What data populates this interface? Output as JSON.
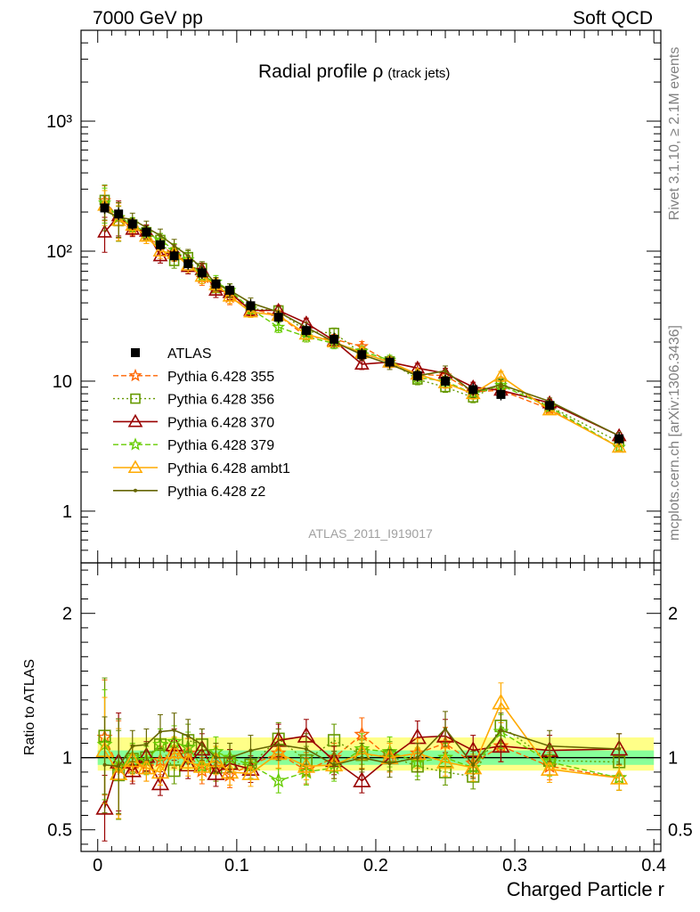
{
  "header": {
    "left": "7000 GeV pp",
    "right": "Soft QCD"
  },
  "side": {
    "upper": "Rivet 3.1.10, ≥ 2.1M events",
    "lower": "mcplots.cern.ch [arXiv:1306.3436]"
  },
  "chart_data": [
    {
      "type": "line",
      "panel": "main",
      "title": "Radial profile ρ",
      "subtitle": "(track jets)",
      "analysis_label": "ATLAS_2011_I919017",
      "xlabel": "",
      "ylabel": "",
      "yscale": "log",
      "xlim": [
        -0.012,
        0.405
      ],
      "ylim": [
        0.4,
        5000
      ],
      "ytick_labels": [
        "1",
        "10",
        "10²",
        "10³"
      ],
      "legend_position": "middle-left",
      "x": [
        0.005,
        0.015,
        0.025,
        0.035,
        0.045,
        0.055,
        0.065,
        0.075,
        0.085,
        0.095,
        0.11,
        0.13,
        0.15,
        0.17,
        0.19,
        0.21,
        0.23,
        0.25,
        0.27,
        0.29,
        0.325,
        0.375
      ],
      "data": {
        "name": "ATLAS",
        "values": [
          215,
          193,
          162,
          140,
          112,
          92,
          80,
          68,
          56,
          50,
          38,
          31,
          24.5,
          21,
          16,
          14,
          11,
          10,
          8.6,
          7.9,
          6.5,
          3.6
        ]
      },
      "series": [
        {
          "name": "Pythia 6.428 355",
          "color": "#ff6600",
          "values": [
            245,
            180,
            150,
            130,
            110,
            95,
            82,
            62,
            52,
            44,
            36,
            32,
            22,
            21,
            18.5,
            14,
            11.3,
            11,
            8.3,
            8.5,
            6.1,
            3.1
          ]
        },
        {
          "name": "Pythia 6.428 356",
          "color": "#669900",
          "values": [
            248,
            170,
            160,
            140,
            122,
            84,
            90,
            74,
            52,
            48,
            36,
            35,
            24,
            23.5,
            16.3,
            14.2,
            10.3,
            9,
            7.5,
            9.6,
            6.4,
            3.4
          ]
        },
        {
          "name": "Pythia 6.428 370",
          "color": "#990000",
          "values": [
            140,
            187,
            147,
            142,
            92,
            100,
            76,
            72,
            50,
            48,
            35,
            35,
            28,
            20.5,
            13.5,
            14,
            12.6,
            11.5,
            9,
            8.5,
            6.8,
            3.8
          ]
        },
        {
          "name": "Pythia 6.428 379",
          "color": "#66cc00",
          "values": [
            235,
            182,
            162,
            137,
            122,
            102,
            86,
            64,
            58,
            50,
            36,
            26,
            22,
            19.5,
            17,
            14.5,
            10.7,
            10,
            8,
            9.3,
            6.3,
            3.1
          ]
        },
        {
          "name": "Pythia 6.428 ambt1",
          "color": "#ffaa00",
          "values": [
            225,
            172,
            158,
            130,
            100,
            96,
            78,
            64,
            55,
            45,
            34,
            32,
            23,
            20,
            16.5,
            14,
            11.3,
            9.7,
            8,
            10.9,
            6,
            3.1
          ]
        },
        {
          "name": "Pythia 6.428 z2",
          "color": "#666600",
          "values": [
            205,
            182,
            175,
            152,
            132,
            110,
            92,
            74,
            56,
            50,
            40,
            34,
            26,
            20,
            16,
            13.5,
            11,
            12,
            8.2,
            9.4,
            7,
            3.8
          ]
        }
      ]
    },
    {
      "type": "line",
      "panel": "ratio",
      "xlabel": "Charged Particle r",
      "ylabel": "Ratio to ATLAS",
      "xlim": [
        -0.012,
        0.405
      ],
      "ylim": [
        0.35,
        2.35
      ],
      "xtick_labels": [
        "0",
        "0.1",
        "0.2",
        "0.3",
        "0.4"
      ],
      "ytick_labels": [
        "0.5",
        "1",
        "2"
      ],
      "reference_value": 1,
      "band_inner": [
        0.95,
        1.05
      ],
      "band_outer": [
        0.91,
        1.14
      ],
      "x": [
        0.005,
        0.015,
        0.025,
        0.035,
        0.045,
        0.055,
        0.065,
        0.075,
        0.085,
        0.095,
        0.11,
        0.13,
        0.15,
        0.17,
        0.19,
        0.21,
        0.23,
        0.25,
        0.27,
        0.29,
        0.325,
        0.375
      ],
      "series": [
        {
          "name": "Pythia 6.428 355",
          "color": "#ff6600",
          "values": [
            1.14,
            0.93,
            0.93,
            0.93,
            0.98,
            1.03,
            1.03,
            0.91,
            0.93,
            0.88,
            0.95,
            1.03,
            0.91,
            1.0,
            1.16,
            1.0,
            1.03,
            1.1,
            0.96,
            1.08,
            0.94,
            0.86
          ]
        },
        {
          "name": "Pythia 6.428 356",
          "color": "#669900",
          "values": [
            1.15,
            0.88,
            0.99,
            1.0,
            1.09,
            0.91,
            1.12,
            1.09,
            0.93,
            0.96,
            0.95,
            1.13,
            0.98,
            1.12,
            1.02,
            1.01,
            0.94,
            0.9,
            0.87,
            1.22,
            0.98,
            0.97
          ]
        },
        {
          "name": "Pythia 6.428 370",
          "color": "#990000",
          "values": [
            0.65,
            0.97,
            0.91,
            1.01,
            0.82,
            1.09,
            0.95,
            1.06,
            0.89,
            0.96,
            0.92,
            1.12,
            1.15,
            0.98,
            0.84,
            1.0,
            1.14,
            1.15,
            1.05,
            1.08,
            1.05,
            1.06
          ]
        },
        {
          "name": "Pythia 6.428 379",
          "color": "#66cc00",
          "values": [
            1.09,
            0.94,
            1.0,
            0.98,
            1.09,
            1.11,
            1.07,
            0.94,
            1.04,
            1.0,
            0.95,
            0.84,
            0.9,
            0.93,
            1.06,
            1.04,
            0.97,
            1.0,
            0.93,
            1.18,
            0.97,
            0.86
          ]
        },
        {
          "name": "Pythia 6.428 ambt1",
          "color": "#ffaa00",
          "values": [
            1.05,
            0.89,
            0.98,
            0.93,
            0.9,
            1.04,
            0.97,
            0.94,
            0.98,
            0.9,
            0.89,
            1.03,
            0.94,
            0.95,
            1.03,
            1.0,
            1.03,
            0.97,
            0.93,
            1.38,
            0.92,
            0.86
          ]
        },
        {
          "name": "Pythia 6.428 z2",
          "color": "#666600",
          "values": [
            0.95,
            0.94,
            1.08,
            1.09,
            1.18,
            1.19,
            1.15,
            1.09,
            1.0,
            1.0,
            1.05,
            1.09,
            1.06,
            0.95,
            1.0,
            0.96,
            1.0,
            1.2,
            0.95,
            1.19,
            1.08,
            1.06
          ]
        }
      ]
    }
  ]
}
